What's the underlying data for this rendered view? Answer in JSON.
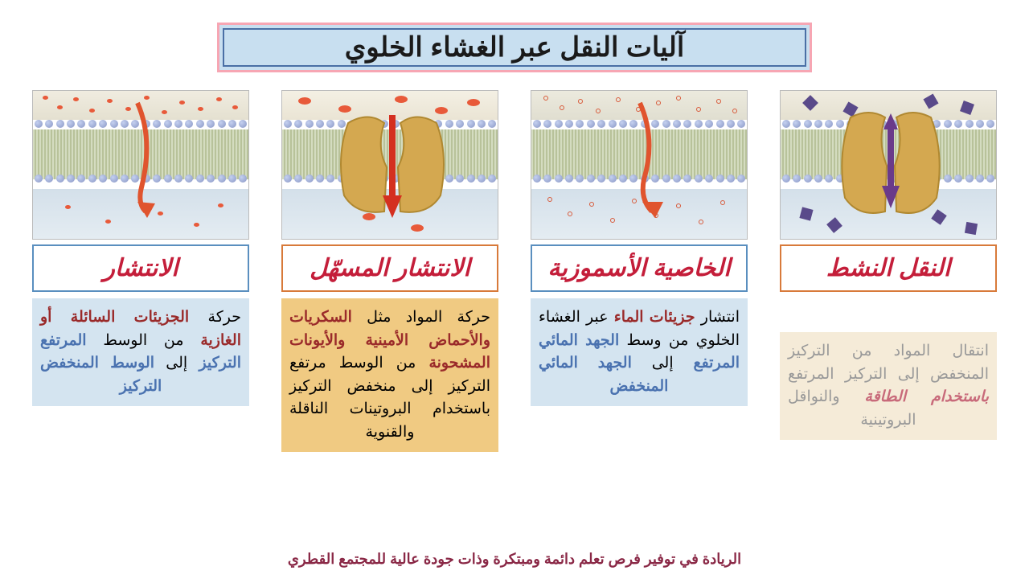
{
  "title": "آليات النقل عبر الغشاء الخلوي",
  "footer": "الريادة في توفير فرص تعلم دائمة ومبتكرة وذات جودة عالية للمجتمع القطري",
  "colors": {
    "title_bg": "#c8dff0",
    "title_outer_border": "#f7a6b3",
    "title_inner_border": "#4a6fa5",
    "label_red": "#c41e3a",
    "border_blue": "#5a8fbf",
    "border_orange": "#d87a3a",
    "desc_blue_bg": "#d4e4f0",
    "desc_orange_bg": "#f0ca82",
    "desc_cream_bg": "#f5ebd8",
    "footer_color": "#8a2846",
    "hl_red": "#9a2a2a",
    "hl_blue": "#4a72b0",
    "text_gray": "#999999",
    "membrane_top_bg": "#e8e4d8",
    "membrane_mid_bg": "#dce0c4",
    "membrane_bot_bg": "#d8e4ec",
    "lipid_head": "#a0acc8",
    "protein_fill": "#d4a850",
    "arrow_color": "#e0542e",
    "purple_arrow": "#6a3a8a"
  },
  "panels": [
    {
      "id": "diffusion",
      "label": "الانتشار",
      "label_border": "#5a8fbf",
      "membrane_type": "simple",
      "particles_top": "red-many",
      "particles_bottom": "red-few",
      "arrow": "curved-down",
      "desc_bg": "#d4e4f0",
      "desc_parts": [
        {
          "t": "حركة ",
          "c": "#000"
        },
        {
          "t": "الجزيئات السائلة أو الغازية",
          "c": "#9a2a2a",
          "b": true
        },
        {
          "t": " من الوسط ",
          "c": "#000"
        },
        {
          "t": "المرتفع التركيز",
          "c": "#4a72b0",
          "b": true
        },
        {
          "t": " إلى ",
          "c": "#000"
        },
        {
          "t": "الوسط المنخفض التركيز",
          "c": "#4a72b0",
          "b": true
        }
      ]
    },
    {
      "id": "facilitated",
      "label": "الانتشار المسهّل",
      "label_border": "#d87a3a",
      "membrane_type": "channel",
      "particles_top": "red-ovals",
      "particles_bottom": "red-ovals-few",
      "arrow": "straight-down-red",
      "desc_bg": "#f0ca82",
      "desc_parts": [
        {
          "t": "حركة المواد مثل ",
          "c": "#000"
        },
        {
          "t": "السكريات والأحماض الأمينية والأيونات المشحونة",
          "c": "#9a2a2a",
          "b": true
        },
        {
          "t": " من الوسط مرتفع التركيز إلى منخفض التركيز باستخدام البروتينات الناقلة والقنوية",
          "c": "#000"
        }
      ]
    },
    {
      "id": "osmosis",
      "label": "الخاصية الأسموزية",
      "label_border": "#5a8fbf",
      "membrane_type": "simple",
      "particles_top": "red-ring-many",
      "particles_bottom": "red-ring-many",
      "arrow": "curved-down",
      "desc_bg": "#d4e4f0",
      "desc_parts": [
        {
          "t": "انتشار ",
          "c": "#000"
        },
        {
          "t": "جزيئات الماء",
          "c": "#9a2a2a",
          "b": true
        },
        {
          "t": " عبر الغشاء الخلوي من وسط ",
          "c": "#000"
        },
        {
          "t": "الجهد المائي المرتفع",
          "c": "#4a72b0",
          "b": true
        },
        {
          "t": " إلى ",
          "c": "#000"
        },
        {
          "t": "الجهد المائي المنخفض",
          "c": "#4a72b0",
          "b": true
        }
      ]
    },
    {
      "id": "active",
      "label": "النقل النشط",
      "label_border": "#d87a3a",
      "membrane_type": "channel",
      "particles_top": "purple",
      "particles_bottom": "purple",
      "arrow": "straight-down-purple",
      "desc_bg": "#f5ebd8",
      "desc_color": "#999999",
      "desc_parts": [
        {
          "t": "انتقال المواد من التركيز المنخفض إلى التركيز المرتفع ",
          "c": "#999"
        },
        {
          "t": "باستخدام الطاقة",
          "c": "#c86a7a",
          "b": true,
          "i": true
        },
        {
          "t": " والنواقل البروتينية",
          "c": "#999"
        }
      ]
    }
  ]
}
